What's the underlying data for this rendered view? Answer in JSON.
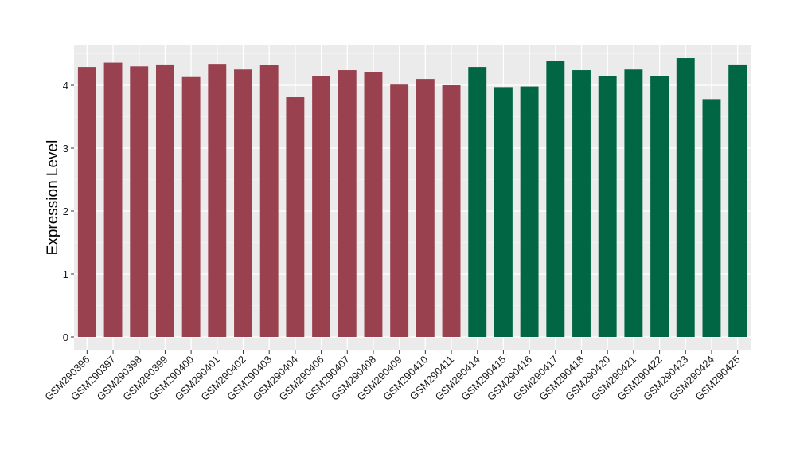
{
  "chart_data": {
    "type": "bar",
    "title": "",
    "xlabel": "",
    "ylabel": "Expression Level",
    "ylim": [
      0,
      4.6
    ],
    "yticks": [
      0,
      1,
      2,
      3,
      4
    ],
    "grid": true,
    "legend": "none",
    "categories": [
      "GSM290396",
      "GSM290397",
      "GSM290398",
      "GSM290399",
      "GSM290400",
      "GSM290401",
      "GSM290402",
      "GSM290403",
      "GSM290404",
      "GSM290406",
      "GSM290407",
      "GSM290408",
      "GSM290409",
      "GSM290410",
      "GSM290411",
      "GSM290414",
      "GSM290415",
      "GSM290416",
      "GSM290417",
      "GSM290418",
      "GSM290420",
      "GSM290421",
      "GSM290422",
      "GSM290423",
      "GSM290424",
      "GSM290425"
    ],
    "values": [
      4.29,
      4.36,
      4.3,
      4.33,
      4.13,
      4.34,
      4.25,
      4.32,
      3.81,
      4.14,
      4.24,
      4.21,
      4.01,
      4.1,
      4.0,
      4.29,
      3.97,
      3.98,
      4.38,
      4.24,
      4.14,
      4.25,
      4.15,
      4.43,
      3.78,
      4.33
    ],
    "groups": [
      0,
      0,
      0,
      0,
      0,
      0,
      0,
      0,
      0,
      0,
      0,
      0,
      0,
      0,
      0,
      1,
      1,
      1,
      1,
      1,
      1,
      1,
      1,
      1,
      1,
      1
    ],
    "group_colors": [
      "#9a414f",
      "#006643"
    ]
  }
}
